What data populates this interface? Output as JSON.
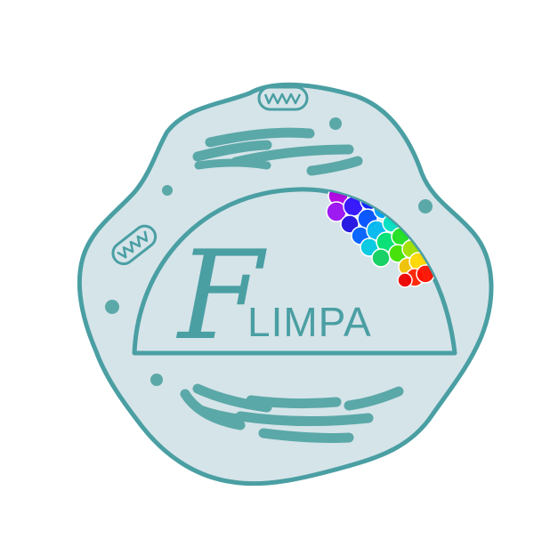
{
  "logo": {
    "brand_letter": "F",
    "brand_word": "LIMPA"
  },
  "colors": {
    "background": "#ffffff",
    "cell_fill": "#d5e4e9",
    "outline": "#4a9fa3",
    "organelle": "#5ba8a8",
    "text": "#4a9fa3"
  }
}
